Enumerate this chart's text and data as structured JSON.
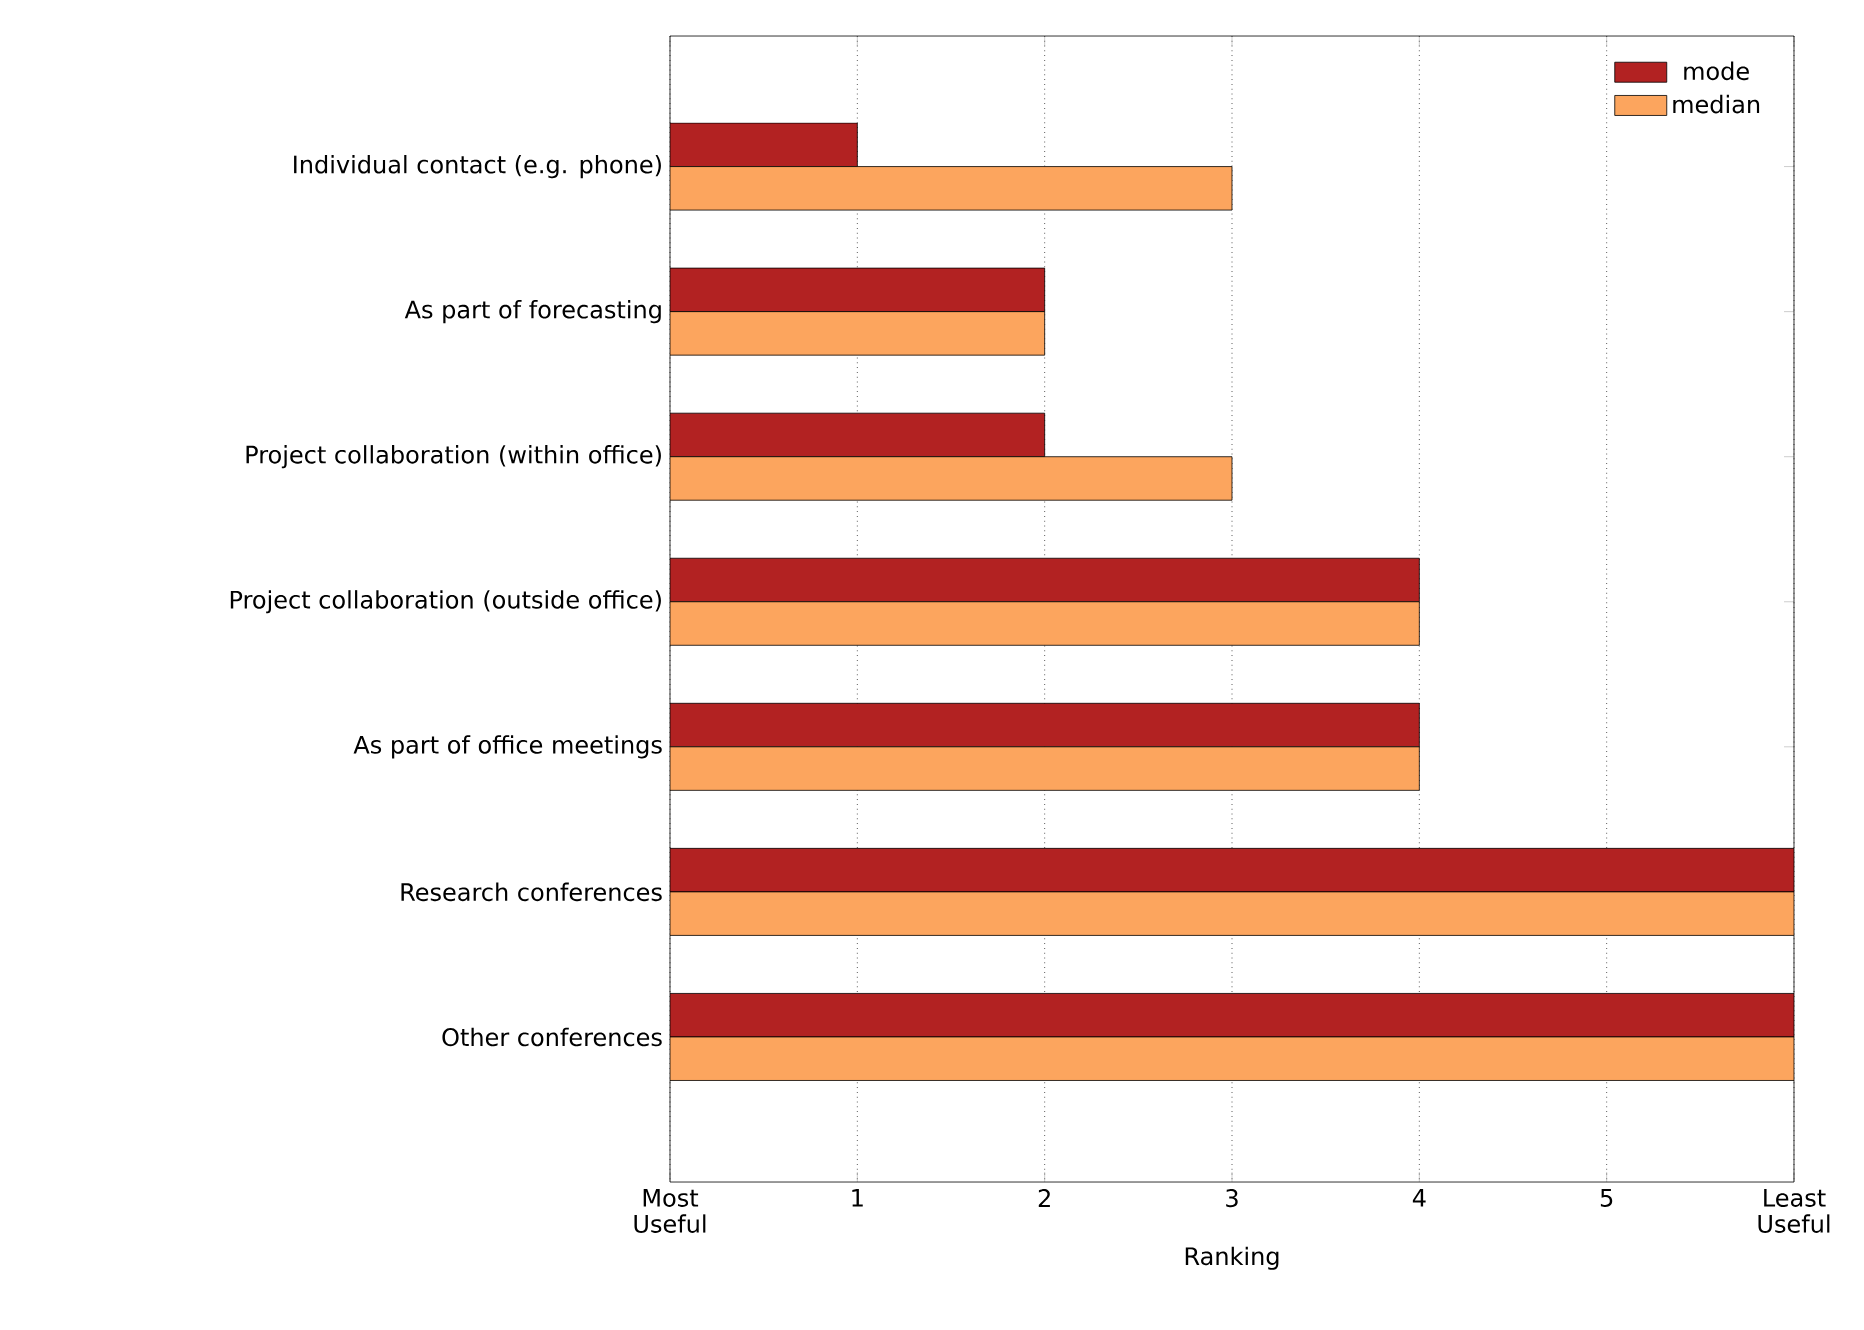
{
  "chart_data": {
    "type": "bar",
    "orientation": "horizontal",
    "xlabel": "Ranking",
    "categories": [
      "Individual contact (e.g. phone)",
      "As part of forecasting",
      "Project collaboration (within office)",
      "Project collaboration (outside office)",
      "As part of office meetings",
      "Research conferences",
      "Other conferences"
    ],
    "series": [
      {
        "name": "mode",
        "color": "#b22222",
        "values": [
          1,
          2,
          2,
          4,
          4,
          6,
          6
        ]
      },
      {
        "name": "median",
        "color": "#fca55e",
        "values": [
          3,
          2,
          3,
          4,
          4,
          6,
          6
        ]
      }
    ],
    "xlim": [
      0,
      6
    ],
    "xticks": [
      {
        "value": 0,
        "label": "Most Useful"
      },
      1,
      2,
      3,
      4,
      5,
      {
        "value": 6,
        "label": "Least Useful"
      }
    ],
    "grid": "x",
    "legend": "top right"
  }
}
